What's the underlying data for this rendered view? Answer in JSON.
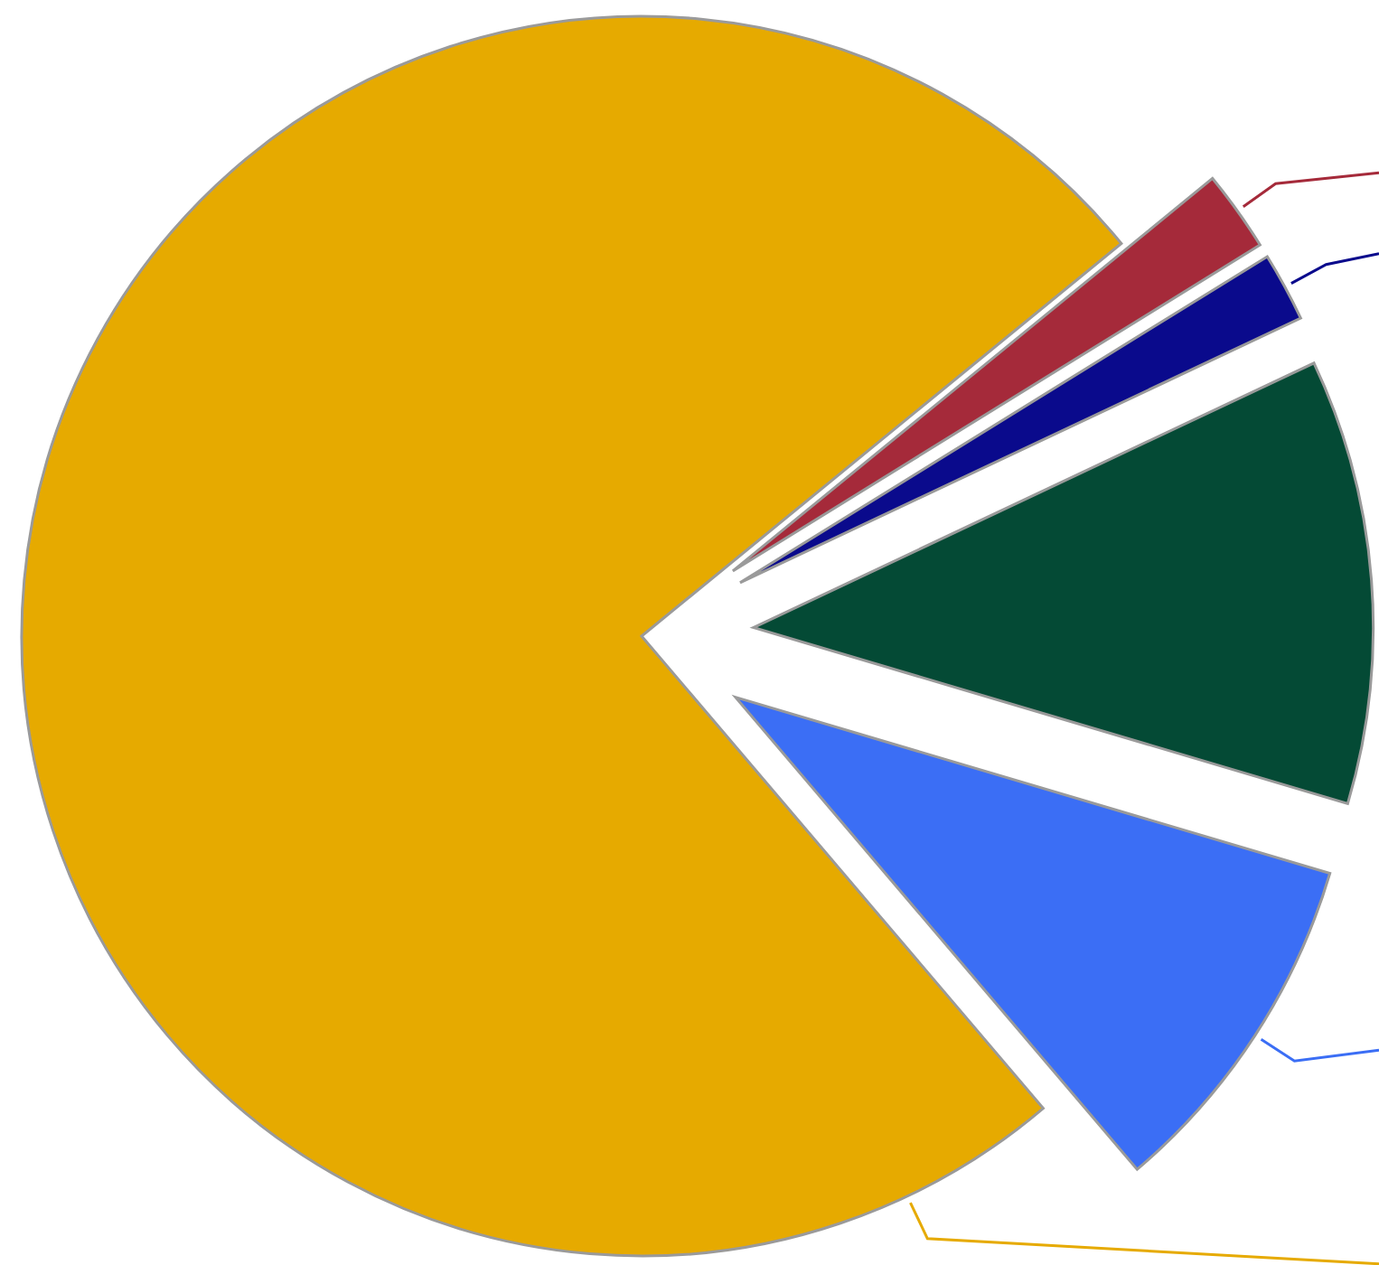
{
  "chart_data": {
    "type": "pie",
    "categories": [
      null,
      null,
      null,
      null,
      null
    ],
    "values": [
      2.1,
      1.8,
      11.6,
      9.2,
      75.3
    ],
    "colors": [
      "#a52a3a",
      "#0a0a8c",
      "#044a35",
      "#3b6ef5",
      "#e6aa00"
    ]
  }
}
